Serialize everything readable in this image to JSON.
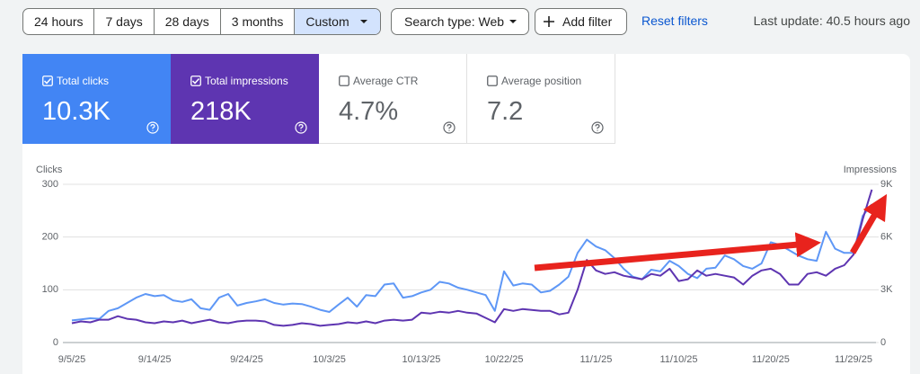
{
  "toolbar": {
    "date_ranges": [
      "24 hours",
      "7 days",
      "28 days",
      "3 months",
      "Custom"
    ],
    "selected_range": 4,
    "search_type": "Search type: Web",
    "add_filter": "Add filter",
    "reset": "Reset filters",
    "last_update": "Last update: 40.5 hours ago"
  },
  "metrics": [
    {
      "label": "Total clicks",
      "value": "10.3K",
      "checked": true,
      "color": "#4285f4"
    },
    {
      "label": "Total impressions",
      "value": "218K",
      "checked": true,
      "color": "#5e35b1"
    },
    {
      "label": "Average CTR",
      "value": "4.7%",
      "checked": false
    },
    {
      "label": "Average position",
      "value": "7.2",
      "checked": false
    }
  ],
  "chart_data": {
    "type": "line",
    "categories": [
      "9/5/25",
      null,
      null,
      null,
      null,
      null,
      null,
      null,
      null,
      "9/14/25",
      null,
      null,
      null,
      null,
      null,
      null,
      null,
      null,
      null,
      "9/24/25",
      null,
      null,
      null,
      null,
      null,
      null,
      null,
      null,
      "10/3/25",
      null,
      null,
      null,
      null,
      null,
      null,
      null,
      null,
      null,
      "10/13/25",
      null,
      null,
      null,
      null,
      null,
      null,
      null,
      null,
      "10/22/25",
      null,
      null,
      null,
      null,
      null,
      null,
      null,
      null,
      null,
      "11/1/25",
      null,
      null,
      null,
      null,
      null,
      null,
      null,
      null,
      "11/10/25",
      null,
      null,
      null,
      null,
      null,
      null,
      null,
      null,
      null,
      "11/20/25",
      null,
      null,
      null,
      null,
      null,
      null,
      null,
      null,
      "11/29/25",
      null,
      null
    ],
    "series": [
      {
        "name": "Clicks",
        "color": "#5e97f6",
        "values": [
          42,
          44,
          46,
          45,
          60,
          65,
          75,
          85,
          92,
          88,
          90,
          80,
          77,
          82,
          65,
          62,
          85,
          92,
          70,
          75,
          78,
          82,
          75,
          72,
          74,
          73,
          68,
          62,
          58,
          72,
          85,
          68,
          90,
          88,
          110,
          112,
          85,
          88,
          95,
          100,
          115,
          112,
          104,
          100,
          95,
          90,
          60,
          135,
          108,
          112,
          110,
          95,
          98,
          110,
          125,
          170,
          195,
          182,
          175,
          160,
          140,
          125,
          120,
          138,
          135,
          155,
          145,
          130,
          122,
          140,
          142,
          165,
          158,
          145,
          140,
          150,
          190,
          185,
          175,
          165,
          158,
          155,
          210,
          178,
          170,
          170,
          240,
          262
        ]
      },
      {
        "name": "Impressions",
        "color": "#5e35b1",
        "axis": "y2",
        "values": [
          1100,
          1200,
          1150,
          1300,
          1300,
          1500,
          1350,
          1300,
          1150,
          1100,
          1200,
          1150,
          1250,
          1100,
          1200,
          1300,
          1150,
          1100,
          1200,
          1250,
          1250,
          1200,
          1000,
          950,
          1000,
          1100,
          1050,
          950,
          1000,
          1050,
          1150,
          1100,
          1200,
          1100,
          1250,
          1300,
          1250,
          1300,
          1700,
          1650,
          1750,
          1700,
          1800,
          1700,
          1650,
          1400,
          1150,
          1900,
          1800,
          1900,
          1850,
          1800,
          1800,
          1600,
          1700,
          3000,
          4700,
          4100,
          3900,
          4000,
          3800,
          3700,
          3600,
          3900,
          3800,
          4200,
          3500,
          3600,
          4100,
          3800,
          3900,
          3800,
          3700,
          3300,
          3800,
          4100,
          4200,
          3900,
          3300,
          3300,
          3900,
          4000,
          3800,
          4200,
          4400,
          5000,
          7000,
          8700
        ]
      }
    ],
    "ylim": [
      0,
      300
    ],
    "yticks": [
      0,
      100,
      200,
      300
    ],
    "y2lim": [
      0,
      9000
    ],
    "y2ticks": [
      0,
      {
        "value": 3000,
        "label": "3K"
      },
      {
        "value": 6000,
        "label": "6K"
      },
      {
        "value": 9000,
        "label": "9K"
      }
    ],
    "grid": true
  }
}
